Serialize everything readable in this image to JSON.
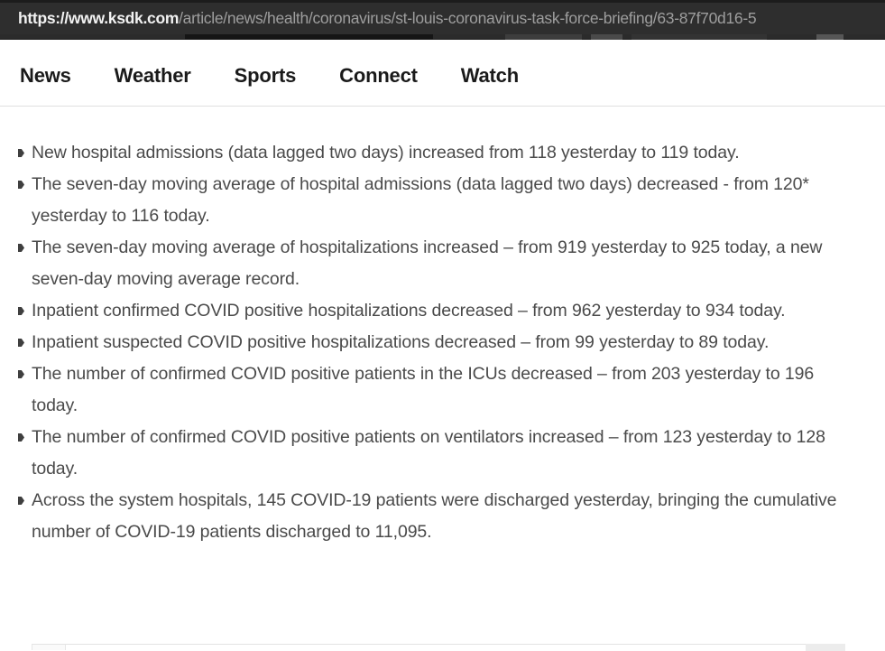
{
  "browser": {
    "url_host": "https://www.ksdk.com",
    "url_path": "/article/news/health/coronavirus/st-louis-coronavirus-task-force-briefing/63-87f70d16-5"
  },
  "nav": {
    "items": [
      {
        "id": "news",
        "label": "News"
      },
      {
        "id": "weather",
        "label": "Weather"
      },
      {
        "id": "sports",
        "label": "Sports"
      },
      {
        "id": "connect",
        "label": "Connect"
      },
      {
        "id": "watch",
        "label": "Watch"
      }
    ]
  },
  "article": {
    "bullets": [
      "New hospital admissions (data lagged two days) increased from 118 yesterday to 119 today.",
      "The seven-day moving average of hospital admissions (data lagged two days) decreased - from 120* yesterday to 116 today.",
      "The seven-day moving average of hospitalizations increased – from 919 yesterday to 925 today, a new seven-day moving average record.",
      "Inpatient confirmed COVID positive hospitalizations decreased – from 962 yesterday to 934 today.",
      "Inpatient suspected COVID positive hospitalizations decreased – from 99 yesterday to 89 today.",
      "The number of confirmed COVID positive patients in the ICUs decreased – from 203 yesterday to 196 today.",
      "The number of confirmed COVID positive patients on ventilators increased – from 123 yesterday to 128 today.",
      "Across the system hospitals, 145 COVID-19 patients were discharged yesterday, bringing the cumulative number of COVID-19 patients discharged to 11,095."
    ]
  },
  "colors": {
    "urlbar_bg": "#2e2e2e",
    "url_host_text": "#f2f2f2",
    "url_path_text": "#9e9e9e",
    "nav_text": "#1a1a1a",
    "nav_divider": "#e0e0e0",
    "body_text": "#4a4a4a",
    "bullet_marker": "#3f3f3f"
  }
}
